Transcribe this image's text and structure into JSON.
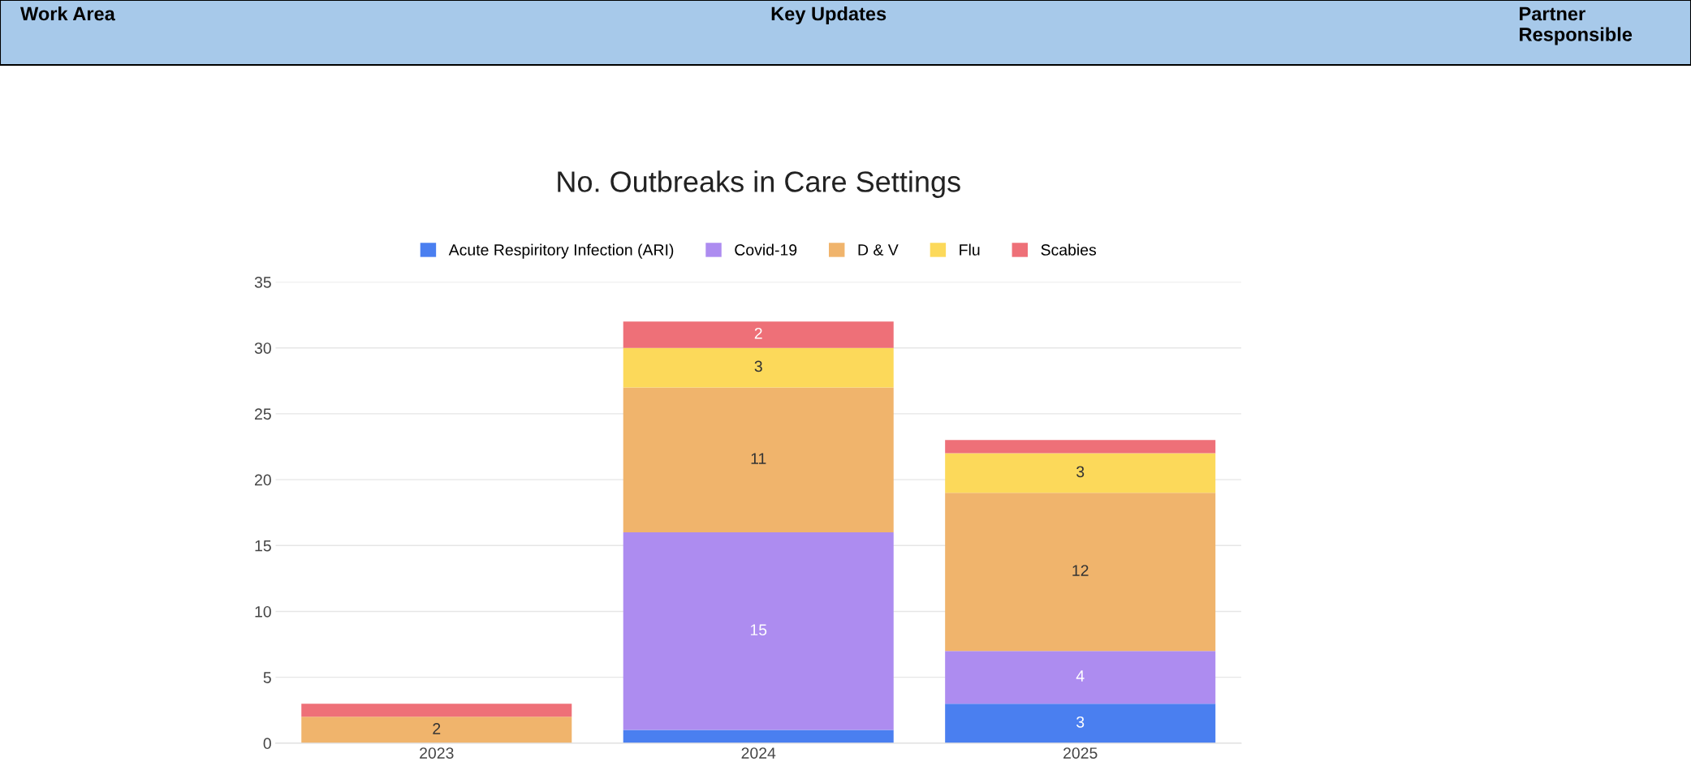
{
  "chart_data": {
    "type": "bar",
    "title": "No. Outbreaks in Care Settings",
    "annotations": [
      "Work Area",
      "Key Updates",
      "Partner Responsible"
    ],
    "categories": [
      "2023",
      "2024",
      "2025"
    ],
    "stacked": true,
    "series": [
      {
        "name": "Acute Respiritory Infection (ARI)",
        "color": "#4a7ff0",
        "values": [
          0,
          1,
          3
        ],
        "value_labels": [
          null,
          null,
          "3"
        ]
      },
      {
        "name": "Covid-19",
        "color": "#ad8cf0",
        "values": [
          0,
          15,
          4
        ],
        "value_labels": [
          null,
          "15",
          "4"
        ]
      },
      {
        "name": "D & V",
        "color": "#f0b46c",
        "values": [
          2,
          11,
          12
        ],
        "value_labels": [
          "2",
          "11",
          "12"
        ]
      },
      {
        "name": "Flu",
        "color": "#fcd95a",
        "values": [
          0,
          3,
          3
        ],
        "value_labels": [
          null,
          "3",
          "3"
        ]
      },
      {
        "name": "Scabies",
        "color": "#ee7078",
        "values": [
          1,
          2,
          1
        ],
        "value_labels": [
          null,
          "2",
          null
        ]
      }
    ],
    "ylim": [
      0,
      35
    ],
    "yticks": [
      0,
      5,
      10,
      15,
      20,
      25,
      30,
      35
    ],
    "grid": "y",
    "legend": "top"
  }
}
